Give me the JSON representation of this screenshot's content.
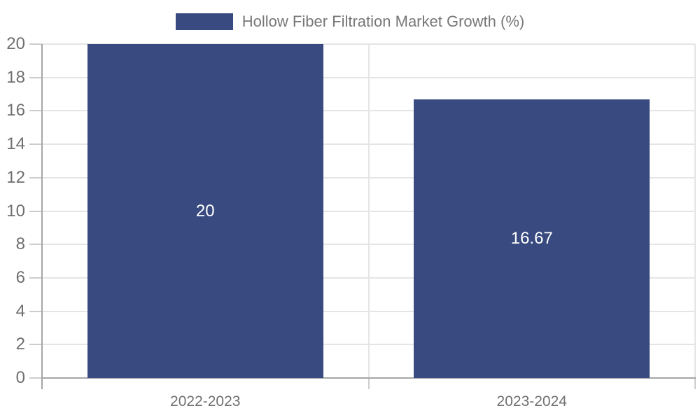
{
  "chart_data": {
    "type": "bar",
    "title": "",
    "legend": "Hollow Fiber Filtration Market Growth (%)",
    "legend_position": "top-center",
    "categories": [
      "2022-2023",
      "2023-2024"
    ],
    "values": [
      20,
      16.67
    ],
    "value_labels": [
      "20",
      "16.67"
    ],
    "xlabel": "",
    "ylabel": "",
    "ylim": [
      0,
      20
    ],
    "ytick_step": 2,
    "ytick_labels": [
      "0",
      "2",
      "4",
      "6",
      "8",
      "10",
      "12",
      "14",
      "16",
      "18",
      "20"
    ],
    "grid": true,
    "colors": {
      "bar": "#384a7f",
      "bar_label_text": "#ffffff",
      "gridline": "#e5e5e5",
      "axis_line": "#a6a6a6",
      "tick_mark": "#cdcdcd",
      "ytick_text": "#6f6f6f",
      "xtick_text": "#707070",
      "legend_text": "#777777",
      "background": "#ffffff"
    }
  }
}
